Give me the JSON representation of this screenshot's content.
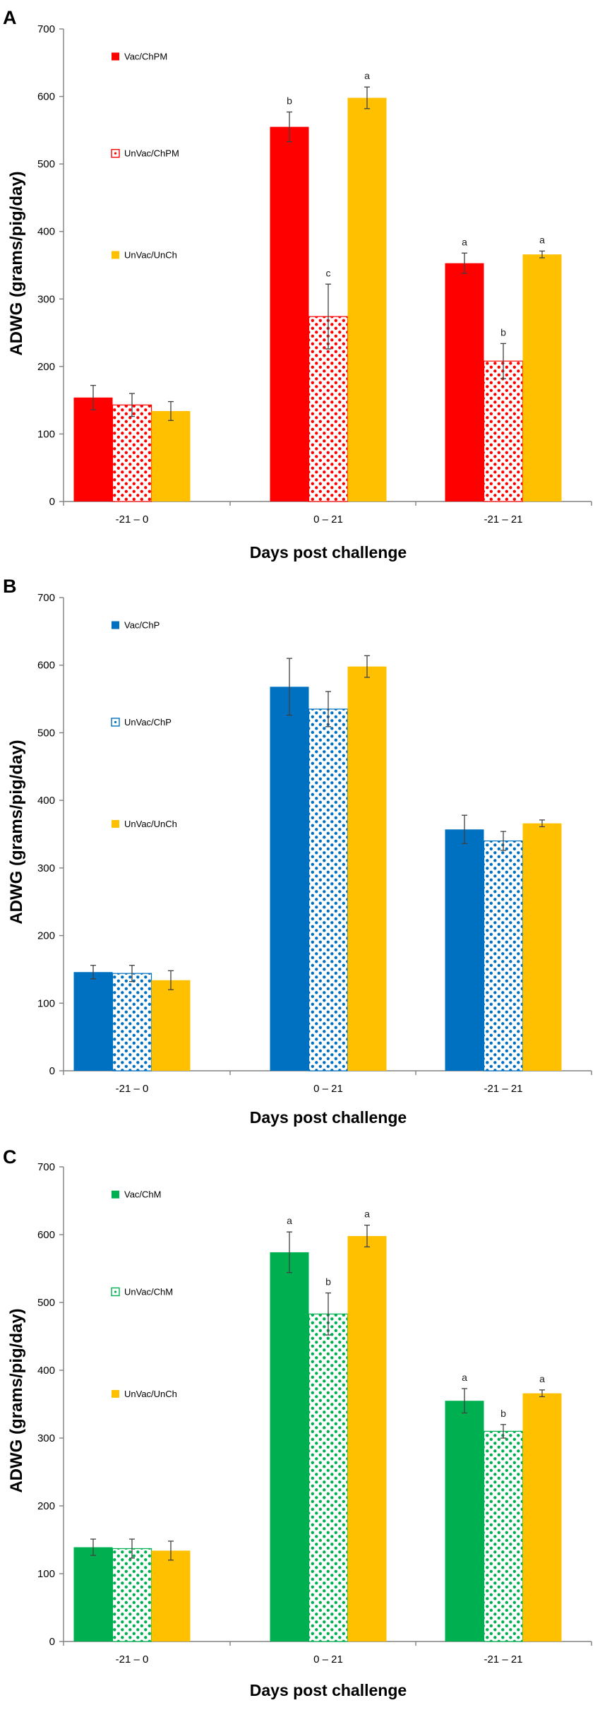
{
  "figure": {
    "colors": {
      "red": "#ff0000",
      "blue": "#0070c0",
      "green": "#00b050",
      "gold": "#ffc000"
    }
  },
  "chart_data": [
    {
      "panel_label": "A",
      "type": "bar",
      "title": "",
      "xlabel": "Days post challenge",
      "ylabel": "ADWG (grams/pig/day)",
      "ylim": [
        0,
        700
      ],
      "yticks": [
        0,
        100,
        200,
        300,
        400,
        500,
        600,
        700
      ],
      "categories": [
        "-21 – 0",
        "0 – 21",
        "-21 – 21"
      ],
      "legend_position": "top-left",
      "series": [
        {
          "name": "Vac/ChPM",
          "color": "#ff0000",
          "pattern": "solid",
          "values": [
            154,
            555,
            353
          ],
          "errors": [
            18,
            22,
            15
          ],
          "sig": [
            "",
            "b",
            "a"
          ]
        },
        {
          "name": "UnVac/ChPM",
          "color": "#ff0000",
          "pattern": "dots",
          "values": [
            143,
            274,
            208
          ],
          "errors": [
            17,
            48,
            26
          ],
          "sig": [
            "",
            "c",
            "b"
          ]
        },
        {
          "name": "UnVac/UnCh",
          "color": "#ffc000",
          "pattern": "solid",
          "values": [
            134,
            598,
            366
          ],
          "errors": [
            14,
            16,
            5
          ],
          "sig": [
            "",
            "a",
            "a"
          ]
        }
      ]
    },
    {
      "panel_label": "B",
      "type": "bar",
      "title": "",
      "xlabel": "Days post challenge",
      "ylabel": "ADWG (grams/pig/day)",
      "ylim": [
        0,
        700
      ],
      "yticks": [
        0,
        100,
        200,
        300,
        400,
        500,
        600,
        700
      ],
      "categories": [
        "-21 – 0",
        "0 – 21",
        "-21 – 21"
      ],
      "legend_position": "top-left",
      "series": [
        {
          "name": "Vac/ChP",
          "color": "#0070c0",
          "pattern": "solid",
          "values": [
            146,
            568,
            357
          ],
          "errors": [
            10,
            42,
            21
          ],
          "sig": [
            "",
            "",
            ""
          ]
        },
        {
          "name": "UnVac/ChP",
          "color": "#0070c0",
          "pattern": "dots",
          "values": [
            144,
            535,
            340
          ],
          "errors": [
            12,
            26,
            14
          ],
          "sig": [
            "",
            "",
            ""
          ]
        },
        {
          "name": "UnVac/UnCh",
          "color": "#ffc000",
          "pattern": "solid",
          "values": [
            134,
            598,
            366
          ],
          "errors": [
            14,
            16,
            5
          ],
          "sig": [
            "",
            "",
            ""
          ]
        }
      ]
    },
    {
      "panel_label": "C",
      "type": "bar",
      "title": "",
      "xlabel": "Days post challenge",
      "ylabel": "ADWG (grams/pig/day)",
      "ylim": [
        0,
        700
      ],
      "yticks": [
        0,
        100,
        200,
        300,
        400,
        500,
        600,
        700
      ],
      "categories": [
        "-21 – 0",
        "0 – 21",
        "-21 – 21"
      ],
      "legend_position": "top-left",
      "series": [
        {
          "name": "Vac/ChM",
          "color": "#00b050",
          "pattern": "solid",
          "values": [
            139,
            574,
            355
          ],
          "errors": [
            12,
            30,
            18
          ],
          "sig": [
            "",
            "a",
            "a"
          ]
        },
        {
          "name": "UnVac/ChM",
          "color": "#00b050",
          "pattern": "dots",
          "values": [
            137,
            483,
            310
          ],
          "errors": [
            14,
            31,
            10
          ],
          "sig": [
            "",
            "b",
            "b"
          ]
        },
        {
          "name": "UnVac/UnCh",
          "color": "#ffc000",
          "pattern": "solid",
          "values": [
            134,
            598,
            366
          ],
          "errors": [
            14,
            16,
            5
          ],
          "sig": [
            "",
            "a",
            "a"
          ]
        }
      ]
    }
  ]
}
